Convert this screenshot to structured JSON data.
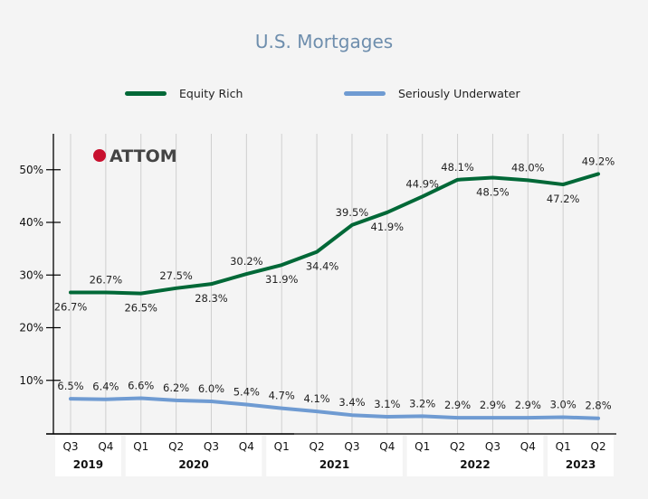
{
  "chart_data": {
    "type": "line",
    "title": "U.S. Mortgages",
    "categories": [
      "Q3",
      "Q4",
      "Q1",
      "Q2",
      "Q3",
      "Q4",
      "Q1",
      "Q2",
      "Q3",
      "Q4",
      "Q1",
      "Q2",
      "Q3",
      "Q4",
      "Q1",
      "Q2"
    ],
    "years": [
      {
        "label": "2019",
        "span": 2
      },
      {
        "label": "2020",
        "span": 4
      },
      {
        "label": "2021",
        "span": 4
      },
      {
        "label": "2022",
        "span": 4
      },
      {
        "label": "2023",
        "span": 2
      }
    ],
    "series": [
      {
        "name": "Equity Rich",
        "color": "#006837",
        "values": [
          26.7,
          26.7,
          26.5,
          27.5,
          28.3,
          30.2,
          31.9,
          34.4,
          39.5,
          41.9,
          44.9,
          48.1,
          48.5,
          48.0,
          47.2,
          49.2
        ]
      },
      {
        "name": "Seriously Underwater",
        "color": "#6f9bd2",
        "values": [
          6.5,
          6.4,
          6.6,
          6.2,
          6.0,
          5.4,
          4.7,
          4.1,
          3.4,
          3.1,
          3.2,
          2.9,
          2.9,
          2.9,
          3.0,
          2.8
        ]
      }
    ],
    "yticks": [
      10,
      20,
      30,
      40,
      50
    ],
    "ylim": [
      0,
      57
    ],
    "grid": "vertical",
    "legend": "top",
    "logo": "ATTOM"
  }
}
